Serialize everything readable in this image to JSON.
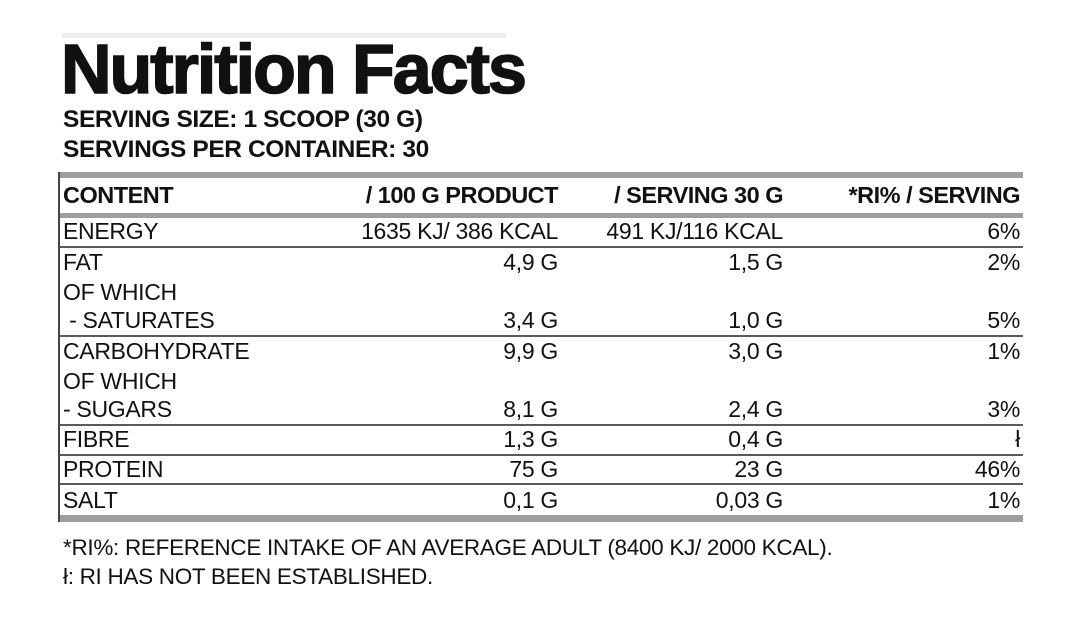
{
  "page": {
    "title": "Nutrition Facts",
    "serving_size": "SERVING SIZE: 1 SCOOP (30 G)",
    "servings_per_container": "SERVINGS PER CONTAINER: 30"
  },
  "table": {
    "headers": [
      "CONTENT",
      "/ 100 G PRODUCT",
      "/ SERVING 30 G",
      "*RI% / SERVING"
    ],
    "rows": [
      {
        "content": "ENERGY",
        "per_100g": "1635 KJ/ 386 KCAL",
        "per_serving": "491 KJ/116 KCAL",
        "ri_percent": "6%",
        "divider": true
      },
      {
        "content": "FAT",
        "per_100g": "4,9 G",
        "per_serving": "1,5 G",
        "ri_percent": "2%",
        "divider": false
      },
      {
        "content": "OF WHICH",
        "per_100g": "",
        "per_serving": "",
        "ri_percent": "",
        "divider": false
      },
      {
        "content": " - SATURATES",
        "per_100g": "3,4 G",
        "per_serving": "1,0 G",
        "ri_percent": "5%",
        "divider": true
      },
      {
        "content": "CARBOHYDRATE",
        "per_100g": "9,9 G",
        "per_serving": "3,0 G",
        "ri_percent": "1%",
        "divider": false
      },
      {
        "content": "OF WHICH",
        "per_100g": "",
        "per_serving": "",
        "ri_percent": "",
        "divider": false
      },
      {
        "content": "- SUGARS",
        "per_100g": "8,1 G",
        "per_serving": "2,4 G",
        "ri_percent": "3%",
        "divider": true
      },
      {
        "content": "FIBRE",
        "per_100g": "1,3 G",
        "per_serving": "0,4 G",
        "ri_percent": "ł",
        "divider": true
      },
      {
        "content": "PROTEIN",
        "per_100g": "75 G",
        "per_serving": "23 G",
        "ri_percent": "46%",
        "divider": true
      },
      {
        "content": "SALT",
        "per_100g": "0,1 G",
        "per_serving": "0,03 G",
        "ri_percent": "1%",
        "divider": false
      }
    ]
  },
  "footnotes": {
    "ri_note": "*RI%: REFERENCE INTAKE OF AN AVERAGE ADULT (8400 KJ/ 2000 KCAL).",
    "not_established_note": "ł: RI HAS NOT BEEN ESTABLISHED."
  },
  "colors": {
    "text": "#111111",
    "bar_gray": "#9e9e9e",
    "divider_gray": "#5a5a5a"
  }
}
